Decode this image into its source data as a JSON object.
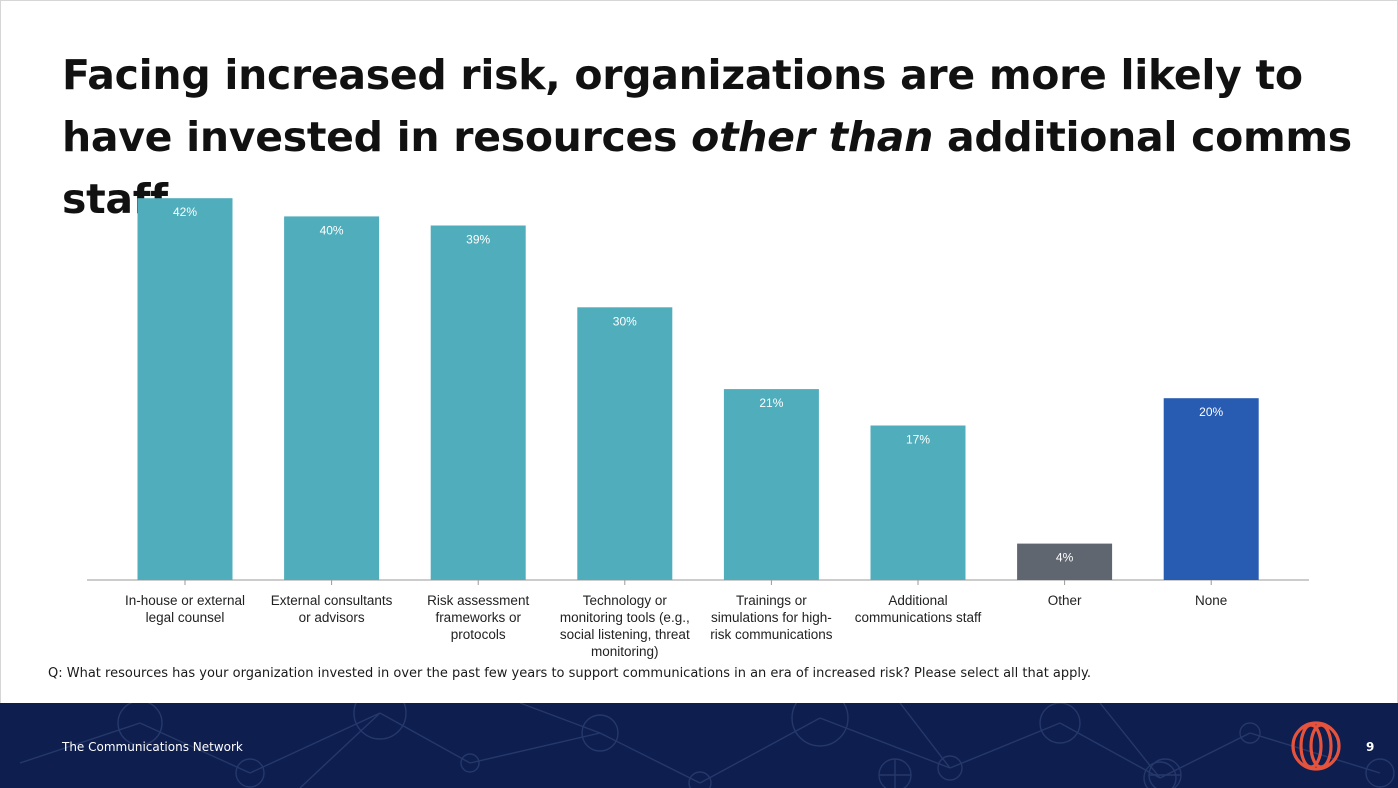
{
  "slide": {
    "title_part1": "Facing increased risk, organizations are more likely to have invested in resources ",
    "title_italic": "other than",
    "title_part2": " additional comms staff.",
    "question": "Q: What resources has your organization invested in over the past few years to support communications in an era of increased risk? Please select all that apply.",
    "footer_org": "The Communications Network",
    "page_number": "9",
    "logo_icon": "communications-network-logo-icon"
  },
  "colors": {
    "teal": "#50adbc",
    "gray": "#5f6670",
    "blue": "#285cb2",
    "footer_bg": "#0d1e4f",
    "logo": "#e5533d"
  },
  "chart_data": {
    "type": "bar",
    "title": "",
    "xlabel": "",
    "ylabel": "",
    "ylim": [
      0,
      44
    ],
    "grid": false,
    "value_suffix": "%",
    "categories": [
      [
        "In-house or external",
        "legal counsel"
      ],
      [
        "External consultants",
        "or advisors"
      ],
      [
        "Risk assessment",
        "frameworks or",
        "protocols"
      ],
      [
        "Technology or",
        "monitoring tools (e.g.,",
        "social listening, threat",
        "monitoring)"
      ],
      [
        "Trainings or",
        "simulations for high-",
        "risk communications"
      ],
      [
        "Additional",
        "communications staff"
      ],
      [
        "Other"
      ],
      [
        "None"
      ]
    ],
    "values": [
      42,
      40,
      39,
      30,
      21,
      17,
      4,
      20
    ],
    "bar_colors": [
      "#50adbc",
      "#50adbc",
      "#50adbc",
      "#50adbc",
      "#50adbc",
      "#50adbc",
      "#5f6670",
      "#285cb2"
    ]
  }
}
